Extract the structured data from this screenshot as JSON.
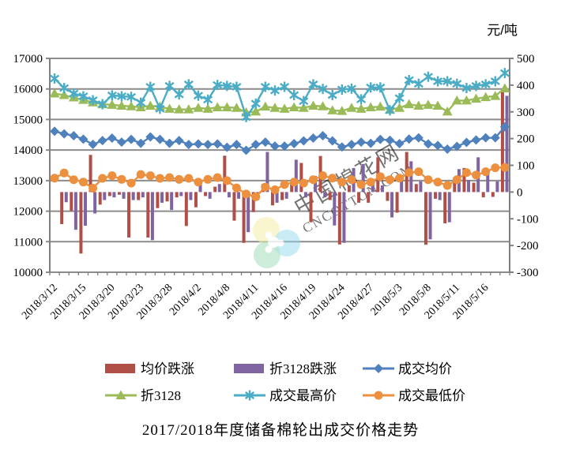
{
  "unit_label": "元/吨",
  "title": "2017/2018年度储备棉轮出成交价格走势",
  "watermark": {
    "line1": "中国棉花网",
    "line2": "CNCOTTON.COM"
  },
  "chart_data": {
    "type": "combo",
    "x": [
      "2018/3/12",
      "2018/3/13",
      "2018/3/14",
      "2018/3/15",
      "2018/3/16",
      "2018/3/19",
      "2018/3/20",
      "2018/3/21",
      "2018/3/22",
      "2018/3/23",
      "2018/3/26",
      "2018/3/27",
      "2018/3/28",
      "2018/3/29",
      "2018/3/30",
      "2018/4/2",
      "2018/4/3",
      "2018/4/4",
      "2018/4/8",
      "2018/4/9",
      "2018/4/10",
      "2018/4/11",
      "2018/4/12",
      "2018/4/13",
      "2018/4/16",
      "2018/4/17",
      "2018/4/18",
      "2018/4/19",
      "2018/4/20",
      "2018/4/23",
      "2018/4/24",
      "2018/4/25",
      "2018/4/26",
      "2018/4/27",
      "2018/4/28",
      "2018/5/2",
      "2018/5/3",
      "2018/5/4",
      "2018/5/7",
      "2018/5/8",
      "2018/5/9",
      "2018/5/10",
      "2018/5/11",
      "2018/5/14",
      "2018/5/15",
      "2018/5/16",
      "2018/5/17",
      "2018/5/18"
    ],
    "x_label_every": 3,
    "x_labels_visible": [
      "2018/3/12",
      "2018/3/15",
      "2018/3/20",
      "2018/3/23",
      "2018/3/28",
      "2018/4/2",
      "2018/4/8",
      "2018/4/11",
      "2018/4/16",
      "2018/4/19",
      "2018/4/24",
      "2018/4/27",
      "2018/5/3",
      "2018/5/8",
      "2018/5/11",
      "2018/5/16"
    ],
    "left_axis": {
      "min": 10000,
      "max": 17000,
      "step": 1000,
      "ticks": [
        "17000",
        "16000",
        "15000",
        "14000",
        "13000",
        "12000",
        "11000",
        "10000"
      ]
    },
    "right_axis": {
      "min": -300,
      "max": 500,
      "step": 100,
      "ticks": [
        "500",
        "400",
        "300",
        "200",
        "100",
        "0",
        "-100",
        "-200",
        "-300"
      ]
    },
    "grid": true,
    "legend_position": "bottom",
    "legend_rows": [
      [
        0,
        1,
        2
      ],
      [
        3,
        4,
        5
      ]
    ],
    "series": [
      {
        "name": "均价跌涨",
        "key": "avg-change-bars",
        "type": "bar",
        "axis": "right",
        "color": "#B04E48",
        "values": [
          null,
          -120,
          -71,
          -230,
          139,
          -47,
          -15,
          -10,
          -170,
          -30,
          -170,
          -60,
          -35,
          -20,
          -127,
          -57,
          -15,
          20,
          136,
          -107,
          -190,
          -75,
          30,
          -50,
          -30,
          40,
          109,
          -113,
          135,
          -30,
          -196,
          25,
          -40,
          -40,
          130,
          -33,
          -77,
          150,
          30,
          -197,
          -25,
          -117,
          40,
          90,
          35,
          -20,
          -18,
          375
        ]
      },
      {
        "name": "折3128跌涨",
        "key": "index3128-change-bars",
        "type": "bar",
        "axis": "right",
        "color": "#8064A2",
        "values": [
          null,
          -38,
          -141,
          -126,
          -80,
          -30,
          -20,
          -25,
          -30,
          -20,
          -180,
          -40,
          -67,
          -15,
          -30,
          40,
          -25,
          30,
          -20,
          -25,
          -150,
          -30,
          150,
          -40,
          -25,
          121,
          -20,
          60,
          -20,
          -125,
          -190,
          90,
          105,
          40,
          25,
          -95,
          55,
          115,
          40,
          -177,
          -30,
          -113,
          86,
          45,
          130,
          75,
          40,
          360
        ]
      },
      {
        "name": "成交均价",
        "key": "avg-price-line",
        "type": "line",
        "axis": "left",
        "color": "#4F81BD",
        "marker": "diamond",
        "values": [
          14615,
          14530,
          14470,
          14355,
          14185,
          14310,
          14390,
          14260,
          14350,
          14220,
          14430,
          14350,
          14220,
          14310,
          14180,
          14200,
          14180,
          14200,
          14090,
          14180,
          13990,
          14180,
          14260,
          14130,
          14130,
          14210,
          14300,
          14390,
          14470,
          14300,
          14100,
          14180,
          14260,
          14220,
          14350,
          14320,
          14210,
          14360,
          14400,
          14200,
          14150,
          14030,
          14120,
          14250,
          14330,
          14400,
          14400,
          14760
        ]
      },
      {
        "name": "折3128",
        "key": "index3128-line",
        "type": "line",
        "axis": "left",
        "color": "#9BBB59",
        "marker": "triangle",
        "values": [
          15850,
          15800,
          15720,
          15640,
          15560,
          15500,
          15480,
          15450,
          15430,
          15400,
          15450,
          15420,
          15350,
          15330,
          15330,
          15380,
          15350,
          15400,
          15400,
          15380,
          15230,
          15260,
          15420,
          15380,
          15350,
          15400,
          15380,
          15450,
          15430,
          15300,
          15280,
          15380,
          15350,
          15400,
          15420,
          15320,
          15380,
          15500,
          15450,
          15480,
          15450,
          15260,
          15620,
          15620,
          15680,
          15730,
          15770,
          16020
        ]
      },
      {
        "name": "成交最高价",
        "key": "max-price-line",
        "type": "line",
        "axis": "left",
        "color": "#4BACC6",
        "marker": "asterisk",
        "values": [
          16340,
          16030,
          15850,
          15760,
          15630,
          15500,
          15790,
          15760,
          15740,
          15550,
          16070,
          15350,
          16100,
          15820,
          16150,
          15780,
          15650,
          16130,
          16100,
          16070,
          15080,
          15520,
          16070,
          15950,
          16070,
          15800,
          15600,
          16150,
          16000,
          15800,
          15980,
          16010,
          15660,
          16050,
          16050,
          15300,
          15700,
          16290,
          16170,
          16400,
          16250,
          16250,
          16170,
          16030,
          16100,
          16150,
          16250,
          16520
        ]
      },
      {
        "name": "成交最低价",
        "key": "min-price-line",
        "type": "line",
        "axis": "left",
        "color": "#EC8F3F",
        "marker": "circle",
        "values": [
          13080,
          13250,
          13030,
          12950,
          12750,
          13075,
          13160,
          13040,
          12920,
          13200,
          13160,
          13075,
          13100,
          13040,
          13075,
          12950,
          13040,
          13100,
          13000,
          12760,
          12560,
          12470,
          12790,
          12700,
          12870,
          12950,
          12920,
          13030,
          13160,
          13080,
          12950,
          13030,
          12870,
          12950,
          13130,
          13030,
          13080,
          13260,
          13290,
          13030,
          12950,
          12840,
          13030,
          13260,
          13180,
          13290,
          13420,
          13430
        ]
      }
    ]
  }
}
